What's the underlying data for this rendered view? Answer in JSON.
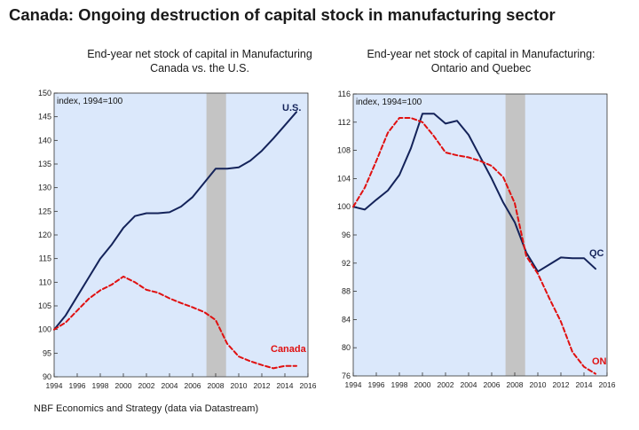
{
  "title": "Canada: Ongoing destruction of capital stock in manufacturing sector",
  "source": "NBF Economics and Strategy (data via Datastream)",
  "colors": {
    "plot_bg": "#dbe8fb",
    "recession": "#c4c4c4",
    "navy": "#14235a",
    "red": "#e01010"
  },
  "chart_data": [
    {
      "type": "line",
      "title_line1": "End-year net stock of capital in Manufacturing",
      "title_line2": "Canada vs. the U.S.",
      "ylabel": "index, 1994=100",
      "xlim": [
        1994,
        2016
      ],
      "ylim": [
        90,
        150
      ],
      "y_ticks": [
        90,
        95,
        100,
        105,
        110,
        115,
        120,
        125,
        130,
        135,
        140,
        145,
        150
      ],
      "x_ticks": [
        1994,
        1996,
        1998,
        2000,
        2002,
        2004,
        2006,
        2008,
        2010,
        2012,
        2014,
        2016
      ],
      "recession": [
        2007.2,
        2008.9
      ],
      "x": [
        1994,
        1995,
        1996,
        1997,
        1998,
        1999,
        2000,
        2001,
        2002,
        2003,
        2004,
        2005,
        2006,
        2007,
        2008,
        2009,
        2010,
        2011,
        2012,
        2013,
        2014,
        2015
      ],
      "series": [
        {
          "name": "U.S.",
          "style": "solid",
          "color": "#14235a",
          "values": [
            100,
            103,
            107,
            111,
            115,
            118,
            121.5,
            124,
            124.6,
            124.6,
            124.8,
            126,
            128,
            131,
            134,
            134,
            134.3,
            135.7,
            137.8,
            140.4,
            143.2,
            146
          ]
        },
        {
          "name": "Canada",
          "style": "dashed",
          "color": "#e01010",
          "values": [
            100,
            101.5,
            104,
            106.5,
            108.3,
            109.5,
            111.2,
            110,
            108.4,
            107.8,
            106.6,
            105.6,
            104.7,
            103.7,
            102,
            97,
            94.3,
            93.3,
            92.5,
            91.8,
            92.3,
            92.3
          ]
        }
      ]
    },
    {
      "type": "line",
      "title_line1": "End-year net stock of capital in Manufacturing:",
      "title_line2": "Ontario and Quebec",
      "ylabel": "index, 1994=100",
      "xlim": [
        1994,
        2016
      ],
      "ylim": [
        76,
        116
      ],
      "y_ticks": [
        76,
        80,
        84,
        88,
        92,
        96,
        100,
        104,
        108,
        112,
        116
      ],
      "x_ticks": [
        1994,
        1996,
        1998,
        2000,
        2002,
        2004,
        2006,
        2008,
        2010,
        2012,
        2014,
        2016
      ],
      "recession": [
        2007.2,
        2008.9
      ],
      "x": [
        1994,
        1995,
        1996,
        1997,
        1998,
        1999,
        2000,
        2001,
        2002,
        2003,
        2004,
        2005,
        2006,
        2007,
        2008,
        2009,
        2010,
        2011,
        2012,
        2013,
        2014,
        2015
      ],
      "series": [
        {
          "name": "QC",
          "style": "solid",
          "color": "#14235a",
          "values": [
            100,
            99.6,
            101,
            102.3,
            104.5,
            108.3,
            113.2,
            113.2,
            111.8,
            112.2,
            110.2,
            107.1,
            104,
            100.6,
            97.8,
            93.5,
            90.8,
            91.8,
            92.8,
            92.7,
            92.7,
            91.2
          ]
        },
        {
          "name": "ON",
          "style": "dashed",
          "color": "#e01010",
          "values": [
            100,
            102.7,
            106.5,
            110.5,
            112.6,
            112.6,
            112,
            110,
            107.7,
            107.3,
            107,
            106.5,
            105.8,
            104.2,
            100.5,
            93,
            90.5,
            87,
            83.7,
            79.4,
            77.3,
            76.3
          ]
        }
      ]
    }
  ]
}
